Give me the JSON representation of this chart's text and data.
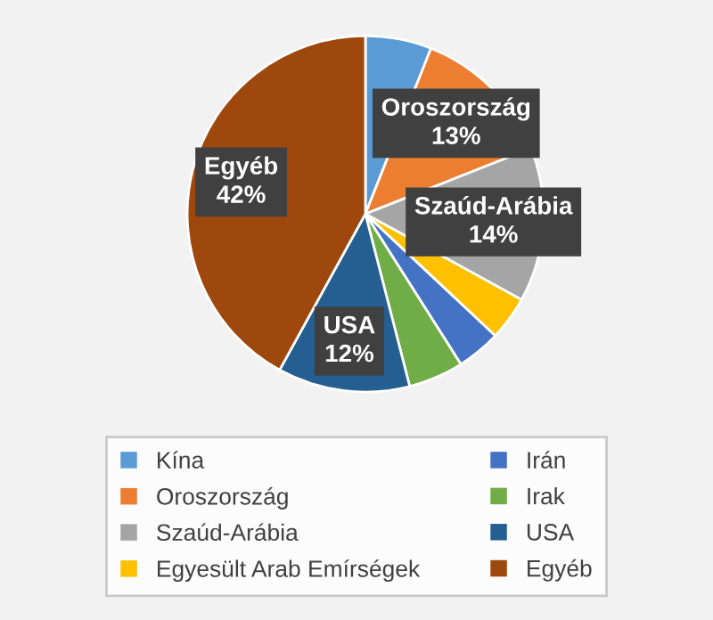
{
  "chart_data": {
    "type": "pie",
    "categories": [
      "Kína",
      "Oroszország",
      "Szaúd-Arábia",
      "Egyesült Arab Emírségek",
      "Irán",
      "Irak",
      "USA",
      "Egyéb"
    ],
    "values": [
      6,
      13,
      14,
      4,
      4,
      5,
      12,
      42
    ],
    "colors": [
      "#5b9bd5",
      "#ed7d31",
      "#a5a5a5",
      "#ffc000",
      "#4472c4",
      "#70ad47",
      "#255e91",
      "#9e480e"
    ],
    "value_labels": [
      null,
      "13%",
      "14%",
      null,
      null,
      null,
      "12%",
      "42%"
    ],
    "legend": "bottom"
  }
}
